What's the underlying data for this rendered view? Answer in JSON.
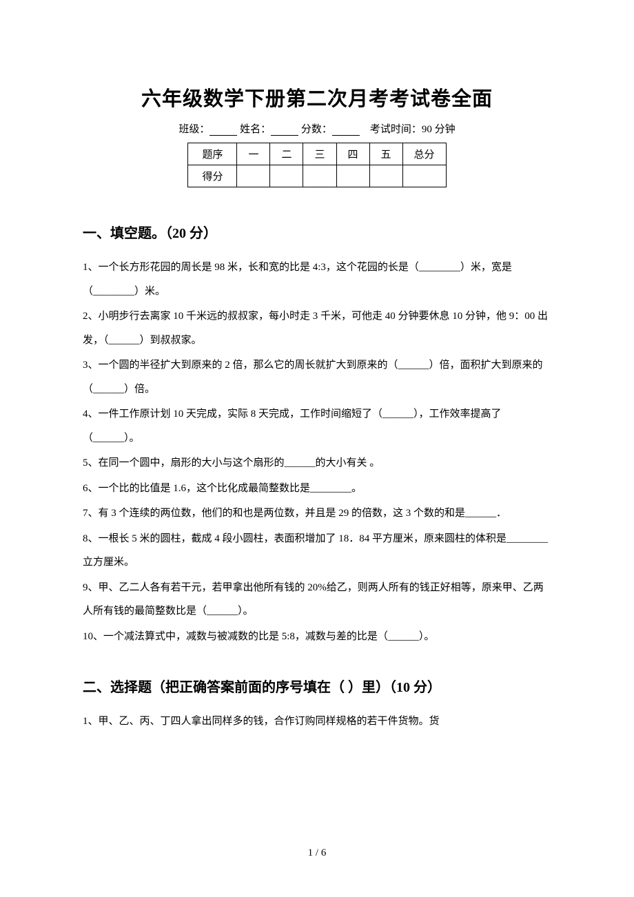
{
  "title": "六年级数学下册第二次月考考试卷全面",
  "studentInfo": {
    "classLabel": "班级：",
    "nameLabel": "姓名：",
    "scoreLabel": "分数：",
    "examTimeLabel": "考试时间：90 分钟"
  },
  "scoreTable": {
    "headers": [
      "题序",
      "一",
      "二",
      "三",
      "四",
      "五",
      "总分"
    ],
    "rowLabel": "得分"
  },
  "section1": {
    "heading": "一、填空题。（20 分）",
    "questions": [
      "1、一个长方形花园的周长是 98 米，长和宽的比是 4:3，这个花园的长是（________）米，宽是（________）米。",
      "2、小明步行去离家 10 千米远的叔叔家，每小时走 3 千米，可他走 40 分钟要休息 10 分钟，他 9：00 出发，（______）到叔叔家。",
      "3、一个圆的半径扩大到原来的 2 倍，那么它的周长就扩大到原来的（______）倍，面积扩大到原来的（______）倍。",
      "4、一件工作原计划 10 天完成，实际 8 天完成，工作时间缩短了（______），工作效率提高了（______）。",
      "5、在同一个圆中，扇形的大小与这个扇形的______的大小有关 。",
      "6、一个比的比值是 1.6，这个比化成最简整数比是________。",
      "7、有 3 个连续的两位数，他们的和也是两位数，并且是 29 的倍数，这 3 个数的和是______．",
      "8、一根长 5 米的圆柱，截成 4 段小圆柱，表面积增加了 18．84 平方厘米，原来圆柱的体积是________立方厘米。",
      "9、甲、乙二人各有若干元，若甲拿出他所有钱的 20%给乙，则两人所有的钱正好相等，原来甲、乙两人所有钱的最简整数比是（______）。",
      "10、一个减法算式中，减数与被减数的比是 5:8，减数与差的比是（______）。"
    ]
  },
  "section2": {
    "heading": "二、选择题（把正确答案前面的序号填在（ ）里）（10 分）",
    "questions": [
      "1、甲、乙、丙、丁四人拿出同样多的钱，合作订购同样规格的若干件货物。货"
    ]
  },
  "pageNumber": "1 / 6"
}
